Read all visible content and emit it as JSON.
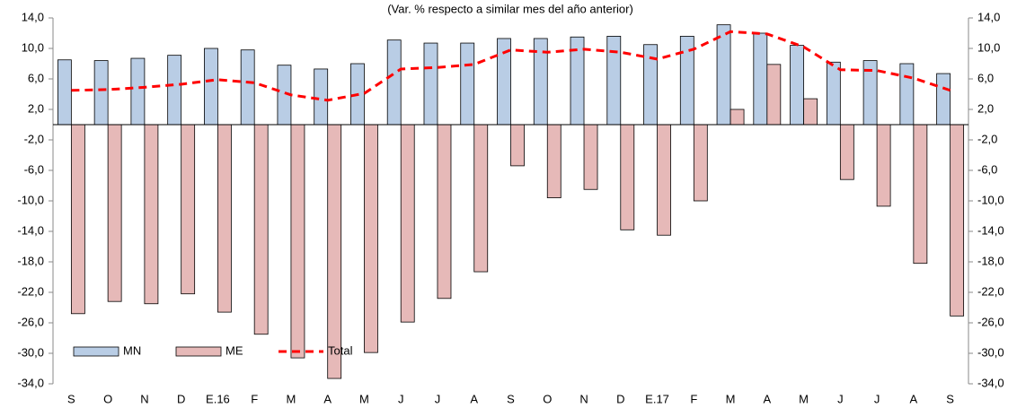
{
  "chart_data": {
    "type": "bar",
    "title": "(Var. % respecto a similar mes del año anterior)",
    "categories": [
      "S",
      "O",
      "N",
      "D",
      "E.16",
      "F",
      "M",
      "A",
      "M",
      "J",
      "J",
      "A",
      "S",
      "O",
      "N",
      "D",
      "E.17",
      "F",
      "M",
      "A",
      "M",
      "J",
      "J",
      "A",
      "S"
    ],
    "series": [
      {
        "name": "MN",
        "type": "bar",
        "color": "#b9cde5",
        "values": [
          8.5,
          8.4,
          8.7,
          9.1,
          10.0,
          9.8,
          7.8,
          7.3,
          8.0,
          11.1,
          10.7,
          10.7,
          11.3,
          11.3,
          11.5,
          11.6,
          10.5,
          11.6,
          13.1,
          12.0,
          10.4,
          8.2,
          8.4,
          8.0,
          6.7
        ]
      },
      {
        "name": "ME",
        "type": "bar",
        "color": "#e6b9b8",
        "values": [
          -24.8,
          -23.2,
          -23.5,
          -22.2,
          -24.6,
          -27.5,
          -30.6,
          -33.3,
          -29.9,
          -25.9,
          -22.8,
          -19.3,
          -5.4,
          -9.6,
          -8.5,
          -13.8,
          -14.5,
          -10.0,
          2.0,
          7.9,
          3.4,
          -7.2,
          -10.7,
          -18.2,
          -25.1
        ]
      },
      {
        "name": "Total",
        "type": "line",
        "dashed": true,
        "color": "#ff0000",
        "values": [
          4.5,
          4.6,
          4.9,
          5.3,
          5.9,
          5.5,
          3.9,
          3.2,
          4.1,
          7.3,
          7.5,
          7.9,
          9.8,
          9.5,
          9.9,
          9.5,
          8.6,
          9.9,
          12.2,
          11.9,
          10.2,
          7.2,
          7.1,
          6.1,
          4.5
        ]
      }
    ],
    "ylim": [
      -34,
      14
    ],
    "yticks": [
      {
        "value": 14,
        "label": "14,0"
      },
      {
        "value": 10,
        "label": "10,0"
      },
      {
        "value": 6,
        "label": "6,0"
      },
      {
        "value": 2,
        "label": "2,0"
      },
      {
        "value": -2,
        "label": "-2,0"
      },
      {
        "value": -6,
        "label": "-6,0"
      },
      {
        "value": -10,
        "label": "-10,0"
      },
      {
        "value": -14,
        "label": "-14,0"
      },
      {
        "value": -18,
        "label": "-18,0"
      },
      {
        "value": -22,
        "label": "-22,0"
      },
      {
        "value": -26,
        "label": "-26,0"
      },
      {
        "value": -30,
        "label": "-30,0"
      },
      {
        "value": -34,
        "label": "-34,0"
      }
    ],
    "y2lim": [
      -34,
      14
    ],
    "y2ticks": [
      {
        "value": 14,
        "label": "14,0"
      },
      {
        "value": 10,
        "label": "10,0"
      },
      {
        "value": 6,
        "label": "6,0"
      },
      {
        "value": 2,
        "label": "2,0"
      },
      {
        "value": -2,
        "label": "-2,0"
      },
      {
        "value": -6,
        "label": "-6,0"
      },
      {
        "value": -10,
        "label": "-10,0"
      },
      {
        "value": -14,
        "label": "-14,0"
      },
      {
        "value": -18,
        "label": "-18,0"
      },
      {
        "value": -22,
        "label": "-22,0"
      },
      {
        "value": -26,
        "label": "-26,0"
      },
      {
        "value": -30,
        "label": "-30,0"
      },
      {
        "value": -34,
        "label": "-34,0"
      }
    ],
    "grid": false,
    "legend": "bottom-left"
  }
}
